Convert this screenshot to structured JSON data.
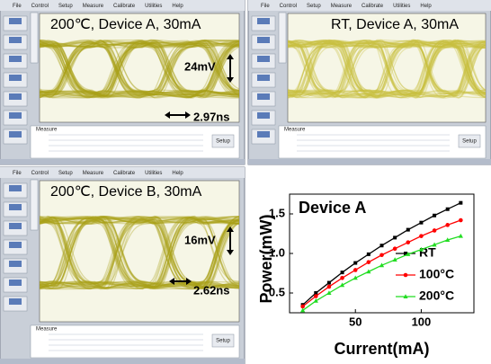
{
  "panels": [
    {
      "menu": [
        "File",
        "Control",
        "Setup",
        "Measure",
        "Calibrate",
        "Utilities",
        "Help"
      ],
      "title": "200℃, Device A, 30mA",
      "annotations": [
        "24mV",
        "2.97ns"
      ],
      "tab": "Measure",
      "button": "Setup"
    },
    {
      "menu": [
        "File",
        "Control",
        "Setup",
        "Measure",
        "Calibrate",
        "Utilities",
        "Help"
      ],
      "title": "RT, Device A, 30mA",
      "annotations": [],
      "tab": "Measure",
      "button": "Setup"
    },
    {
      "menu": [
        "File",
        "Control",
        "Setup",
        "Measure",
        "Calibrate",
        "Utilities",
        "Help"
      ],
      "title": "200℃, Device B, 30mA",
      "annotations": [
        "16mV",
        "2.62ns"
      ],
      "tab": "Measure",
      "button": "Setup"
    }
  ],
  "chart_data": {
    "type": "line",
    "title": "Device A",
    "x_label": "Current(mA)",
    "y_label": "Power(mW)",
    "x": [
      10,
      20,
      30,
      40,
      50,
      60,
      70,
      80,
      90,
      100,
      110,
      120,
      130
    ],
    "series": [
      {
        "name": "RT",
        "color": "#000000",
        "marker": "square",
        "values": [
          0.35,
          0.5,
          0.63,
          0.76,
          0.88,
          0.99,
          1.1,
          1.2,
          1.3,
          1.39,
          1.48,
          1.56,
          1.64
        ]
      },
      {
        "name": "100°C",
        "color": "#ff0000",
        "marker": "circle",
        "values": [
          0.33,
          0.46,
          0.58,
          0.69,
          0.79,
          0.89,
          0.98,
          1.06,
          1.14,
          1.22,
          1.29,
          1.36,
          1.42
        ]
      },
      {
        "name": "200°C",
        "color": "#22dd22",
        "marker": "triangle",
        "values": [
          0.28,
          0.4,
          0.5,
          0.6,
          0.69,
          0.77,
          0.85,
          0.92,
          0.99,
          1.05,
          1.11,
          1.17,
          1.22
        ]
      }
    ],
    "xlim": [
      0,
      140
    ],
    "xticks": [
      50,
      100
    ],
    "ylim": [
      0.25,
      1.75
    ],
    "yticks": [
      {
        "value": 0.5,
        "label": "0.5"
      },
      {
        "value": 1.0,
        "label": "1.0"
      },
      {
        "value": 1.5,
        "label": "1.5"
      }
    ],
    "legend": "lower right"
  }
}
